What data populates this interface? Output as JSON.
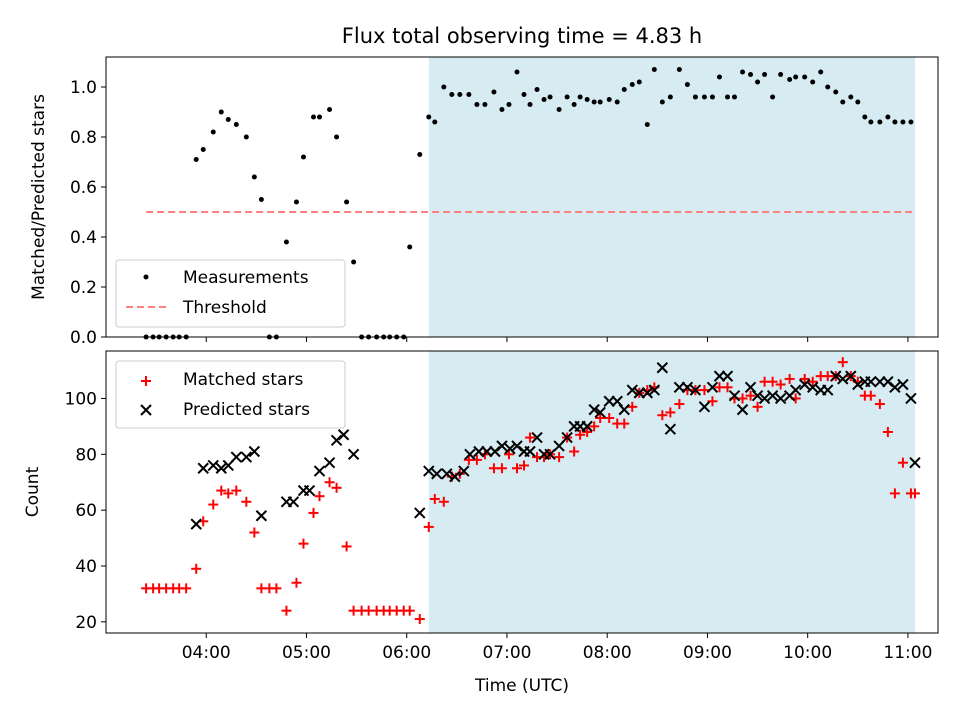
{
  "title": "Flux total observing time = 4.83 h",
  "xlabel": "Time (UTC)",
  "x_ticks": [
    "04:00",
    "05:00",
    "06:00",
    "07:00",
    "08:00",
    "09:00",
    "10:00",
    "11:00"
  ],
  "colors": {
    "measurement": "#000000",
    "threshold": "#ff7f7f",
    "matched": "#ff0000",
    "predicted": "#000000",
    "shade": "#add8e6"
  },
  "chart_data": [
    {
      "type": "scatter",
      "x_unit": "hours UTC",
      "xlim": [
        3.0,
        11.3
      ],
      "ylim": [
        0,
        1.12
      ],
      "ylabel": "Matched/Predicted stars",
      "y_ticks": [
        0.0,
        0.2,
        0.4,
        0.6,
        0.8,
        1.0
      ],
      "shaded_region": [
        6.22,
        11.07
      ],
      "threshold": {
        "y": 0.5,
        "x_range": [
          3.4,
          11.07
        ]
      },
      "legend": {
        "position": "lower-left",
        "entries": [
          "Measurements",
          "Threshold"
        ]
      },
      "series": [
        {
          "name": "Measurements",
          "x": [
            3.4,
            3.47,
            3.53,
            3.6,
            3.67,
            3.73,
            3.8,
            3.9,
            3.97,
            4.07,
            4.15,
            4.22,
            4.3,
            4.4,
            4.48,
            4.55,
            4.63,
            4.7,
            4.8,
            4.9,
            4.97,
            5.07,
            5.13,
            5.23,
            5.3,
            5.4,
            5.47,
            5.55,
            5.62,
            5.7,
            5.77,
            5.83,
            5.9,
            5.97,
            6.03,
            6.13,
            6.22,
            6.28,
            6.37,
            6.45,
            6.53,
            6.62,
            6.7,
            6.78,
            6.87,
            6.95,
            7.02,
            7.1,
            7.17,
            7.23,
            7.3,
            7.37,
            7.43,
            7.52,
            7.6,
            7.67,
            7.73,
            7.8,
            7.87,
            7.93,
            8.02,
            8.1,
            8.17,
            8.25,
            8.32,
            8.4,
            8.47,
            8.55,
            8.63,
            8.72,
            8.8,
            8.88,
            8.97,
            9.05,
            9.12,
            9.2,
            9.27,
            9.35,
            9.43,
            9.5,
            9.57,
            9.65,
            9.73,
            9.82,
            9.88,
            9.97,
            10.05,
            10.13,
            10.2,
            10.28,
            10.35,
            10.43,
            10.5,
            10.57,
            10.63,
            10.72,
            10.8,
            10.87,
            10.95,
            11.03
          ],
          "y": [
            0,
            0,
            0,
            0,
            0,
            0,
            0,
            0.71,
            0.75,
            0.82,
            0.9,
            0.87,
            0.85,
            0.8,
            0.64,
            0.55,
            0,
            0,
            0.38,
            0.54,
            0.72,
            0.88,
            0.88,
            0.91,
            0.8,
            0.54,
            0.3,
            0,
            0,
            0,
            0,
            0,
            0,
            0,
            0.36,
            0.73,
            0.88,
            0.86,
            1.0,
            0.97,
            0.97,
            0.97,
            0.93,
            0.93,
            0.98,
            0.91,
            0.93,
            1.06,
            0.97,
            0.93,
            0.99,
            0.95,
            0.96,
            0.91,
            0.96,
            0.93,
            0.96,
            0.95,
            0.94,
            0.94,
            0.95,
            0.94,
            0.99,
            1.01,
            1.02,
            0.85,
            1.07,
            0.94,
            0.96,
            1.07,
            1.01,
            0.96,
            0.96,
            0.96,
            1.04,
            0.96,
            0.96,
            1.06,
            1.05,
            1.02,
            1.05,
            0.96,
            1.05,
            1.03,
            1.04,
            1.04,
            1.02,
            1.06,
            1.0,
            0.98,
            0.94,
            0.96,
            0.94,
            0.88,
            0.86,
            0.86,
            0.88,
            0.86,
            0.86,
            0.86
          ]
        }
      ]
    },
    {
      "type": "scatter",
      "x_unit": "hours UTC",
      "xlim": [
        3.0,
        11.3
      ],
      "ylim": [
        16,
        117
      ],
      "ylabel": "Count",
      "y_ticks": [
        20,
        40,
        60,
        80,
        100
      ],
      "shaded_region": [
        6.22,
        11.07
      ],
      "legend": {
        "position": "upper-left",
        "entries": [
          "Matched stars",
          "Predicted stars"
        ]
      },
      "series": [
        {
          "name": "Matched stars",
          "marker": "plus",
          "x": [
            3.4,
            3.47,
            3.53,
            3.6,
            3.67,
            3.73,
            3.8,
            3.9,
            3.97,
            4.07,
            4.15,
            4.22,
            4.3,
            4.4,
            4.48,
            4.55,
            4.63,
            4.7,
            4.8,
            4.9,
            4.97,
            5.07,
            5.13,
            5.23,
            5.3,
            5.4,
            5.47,
            5.55,
            5.62,
            5.7,
            5.77,
            5.83,
            5.9,
            5.97,
            6.03,
            6.13,
            6.22,
            6.28,
            6.37,
            6.45,
            6.53,
            6.62,
            6.7,
            6.78,
            6.87,
            6.95,
            7.02,
            7.1,
            7.17,
            7.23,
            7.3,
            7.37,
            7.43,
            7.52,
            7.6,
            7.67,
            7.73,
            7.8,
            7.87,
            7.93,
            8.02,
            8.1,
            8.17,
            8.25,
            8.32,
            8.4,
            8.47,
            8.55,
            8.63,
            8.72,
            8.8,
            8.88,
            8.97,
            9.05,
            9.12,
            9.2,
            9.27,
            9.35,
            9.43,
            9.5,
            9.57,
            9.65,
            9.73,
            9.82,
            9.88,
            9.97,
            10.05,
            10.13,
            10.2,
            10.28,
            10.35,
            10.43,
            10.5,
            10.57,
            10.63,
            10.72,
            10.8,
            10.87,
            10.95,
            11.03,
            11.07
          ],
          "y": [
            32,
            32,
            32,
            32,
            32,
            32,
            32,
            39,
            56,
            62,
            67,
            66,
            67,
            63,
            52,
            32,
            32,
            32,
            24,
            34,
            48,
            59,
            65,
            70,
            68,
            47,
            24,
            24,
            24,
            24,
            24,
            24,
            24,
            24,
            24,
            21,
            54,
            64,
            63,
            72,
            73,
            78,
            78,
            80,
            75,
            75,
            80,
            75,
            76,
            86,
            79,
            79,
            80,
            79,
            86,
            81,
            87,
            88,
            90,
            93,
            93,
            91,
            91,
            97,
            102,
            103,
            104,
            94,
            95,
            98,
            103,
            103,
            103,
            99,
            104,
            104,
            100,
            100,
            101,
            97,
            106,
            106,
            105,
            107,
            100,
            107,
            106,
            108,
            108,
            108,
            113,
            108,
            106,
            101,
            101,
            98,
            88,
            66,
            77,
            66,
            66
          ],
          "y_note": "approximate"
        },
        {
          "name": "Predicted stars",
          "marker": "x",
          "x": [
            3.9,
            3.97,
            4.07,
            4.15,
            4.22,
            4.3,
            4.4,
            4.48,
            4.55,
            4.8,
            4.87,
            4.97,
            5.03,
            5.13,
            5.23,
            5.3,
            5.37,
            5.47,
            6.13,
            6.22,
            6.3,
            6.4,
            6.48,
            6.57,
            6.63,
            6.72,
            6.8,
            6.88,
            6.95,
            7.03,
            7.1,
            7.17,
            7.23,
            7.3,
            7.37,
            7.43,
            7.52,
            7.6,
            7.67,
            7.73,
            7.8,
            7.87,
            7.93,
            8.02,
            8.1,
            8.17,
            8.25,
            8.32,
            8.4,
            8.47,
            8.55,
            8.63,
            8.72,
            8.8,
            8.88,
            8.97,
            9.05,
            9.12,
            9.2,
            9.27,
            9.35,
            9.43,
            9.5,
            9.57,
            9.65,
            9.73,
            9.82,
            9.88,
            9.97,
            10.05,
            10.13,
            10.2,
            10.28,
            10.35,
            10.43,
            10.5,
            10.57,
            10.63,
            10.72,
            10.8,
            10.87,
            10.95,
            11.03,
            11.07
          ],
          "y": [
            55,
            75,
            76,
            75,
            76,
            79,
            79,
            81,
            58,
            63,
            63,
            67,
            67,
            74,
            77,
            85,
            87,
            80,
            59,
            74,
            73,
            73,
            72,
            74,
            80,
            81,
            81,
            81,
            83,
            82,
            83,
            81,
            81,
            86,
            80,
            80,
            83,
            86,
            90,
            90,
            90,
            96,
            95,
            99,
            99,
            96,
            103,
            102,
            102,
            103,
            111,
            89,
            104,
            104,
            103,
            97,
            104,
            108,
            108,
            101,
            96,
            104,
            101,
            100,
            101,
            100,
            101,
            103,
            105,
            104,
            103,
            103,
            108,
            107,
            108,
            105,
            106,
            106,
            106,
            106,
            104,
            105,
            100,
            77
          ]
        }
      ]
    }
  ]
}
